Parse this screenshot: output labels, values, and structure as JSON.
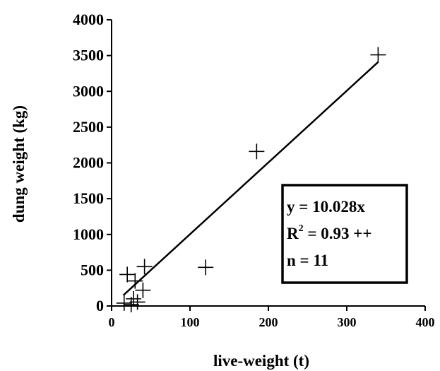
{
  "chart_data": {
    "type": "scatter",
    "title": "",
    "xlabel": "live-weight (t)",
    "ylabel": "dung weight (kg)",
    "xlim": [
      0,
      400
    ],
    "ylim": [
      0,
      4000
    ],
    "x_ticks": [
      "0",
      "100",
      "200",
      "300",
      "400"
    ],
    "y_ticks": [
      "0",
      "500",
      "1000",
      "1500",
      "2000",
      "2500",
      "3000",
      "3500",
      "4000"
    ],
    "grid": false,
    "marker": "plus",
    "points": [
      {
        "x": 340,
        "y": 3510
      },
      {
        "x": 185,
        "y": 2160
      },
      {
        "x": 120,
        "y": 540
      },
      {
        "x": 42,
        "y": 550
      },
      {
        "x": 20,
        "y": 440
      },
      {
        "x": 30,
        "y": 350
      },
      {
        "x": 40,
        "y": 220
      },
      {
        "x": 28,
        "y": 100
      },
      {
        "x": 33,
        "y": 55
      },
      {
        "x": 16,
        "y": 40
      },
      {
        "x": 25,
        "y": 20
      }
    ],
    "trendline": {
      "slope": 10.028,
      "intercept": 0,
      "x_range": [
        15,
        340
      ]
    },
    "stats_box": {
      "equation": "y = 10.028x",
      "r2_label": "R",
      "r2_sup": "2",
      "r2_value": " = 0.93 ++",
      "n": "n = 11"
    }
  }
}
